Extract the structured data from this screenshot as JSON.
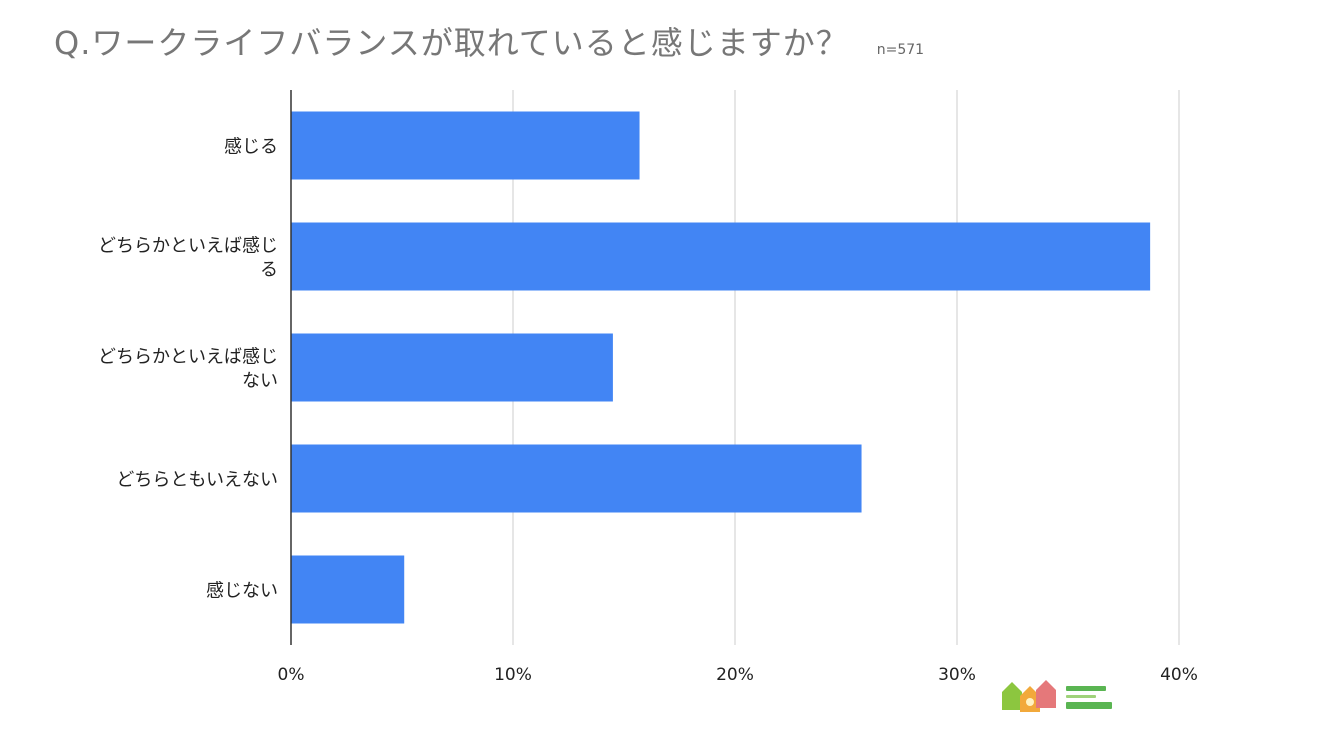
{
  "title": "Q.ワークライフバランスが取れていると感じますか？",
  "sample_size": "n=571",
  "logo": {
    "icon": "house-group-logo-icon",
    "colors": [
      "#8cc63f",
      "#f2a93b",
      "#e5787a",
      "#5ab552"
    ]
  },
  "chart_data": {
    "type": "bar",
    "orientation": "horizontal",
    "title": "Q.ワークライフバランスが取れていると感じますか？",
    "categories": [
      [
        "感じる"
      ],
      [
        "どちらかといえば感じ",
        "る"
      ],
      [
        "どちらかといえば感じ",
        "ない"
      ],
      [
        "どちらともいえない"
      ],
      [
        "感じない"
      ]
    ],
    "values": [
      15.7,
      38.7,
      14.5,
      25.7,
      5.1
    ],
    "xlim": [
      0,
      40
    ],
    "x_ticks": [
      "0%",
      "10%",
      "20%",
      "30%",
      "40%"
    ],
    "x_tick_values": [
      0,
      10,
      20,
      30,
      40
    ],
    "grid": true,
    "bar_color": "#4285f4"
  }
}
